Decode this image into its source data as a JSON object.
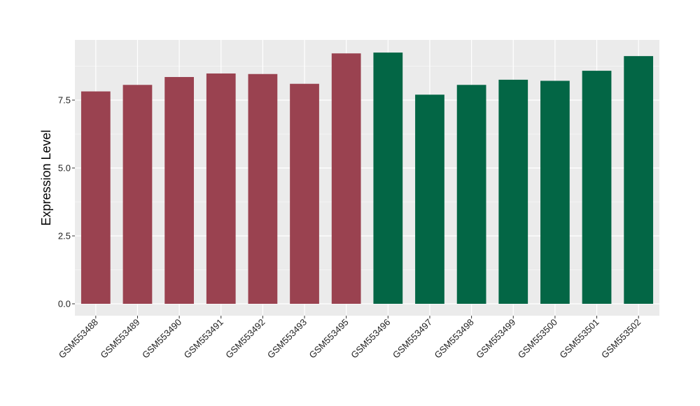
{
  "chart_data": {
    "type": "bar",
    "xlabel": "",
    "ylabel": "Expression Level",
    "ylim": [
      0,
      9.65
    ],
    "yticks": [
      0.0,
      2.5,
      5.0,
      7.5
    ],
    "ytick_labels": [
      "0.0",
      "2.5",
      "5.0",
      "7.5"
    ],
    "grid": true,
    "categories": [
      "GSM553488",
      "GSM553489",
      "GSM553490",
      "GSM553491",
      "GSM553492",
      "GSM553493",
      "GSM553495",
      "GSM553496",
      "GSM553497",
      "GSM553498",
      "GSM553499",
      "GSM553500",
      "GSM553501",
      "GSM553502"
    ],
    "values": [
      7.82,
      8.06,
      8.35,
      8.48,
      8.46,
      8.1,
      9.22,
      9.25,
      7.7,
      8.06,
      8.25,
      8.21,
      8.58,
      9.12
    ],
    "bar_colors": [
      "#9a4250",
      "#9a4250",
      "#9a4250",
      "#9a4250",
      "#9a4250",
      "#9a4250",
      "#9a4250",
      "#036645",
      "#036645",
      "#036645",
      "#036645",
      "#036645",
      "#036645",
      "#036645"
    ]
  },
  "colors": {
    "panel_background": "#ebebeb",
    "grid_major": "#ffffff",
    "group_1": "#9a4250",
    "group_2": "#036645"
  }
}
